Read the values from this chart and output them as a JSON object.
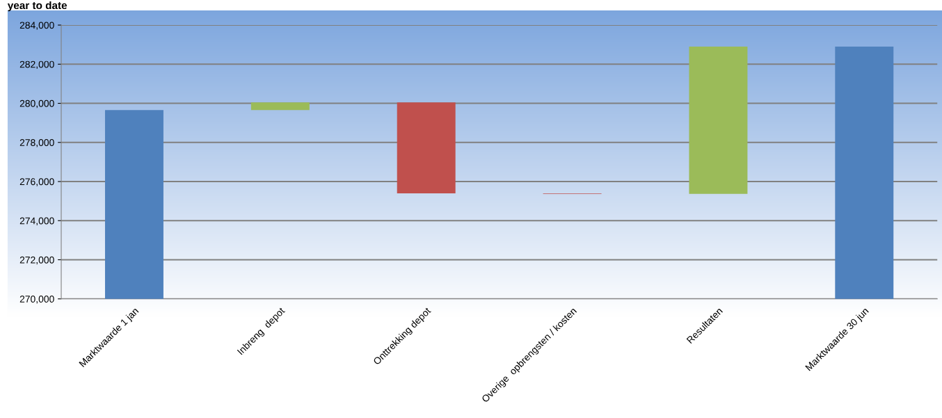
{
  "chart_data": {
    "type": "bar",
    "title": "year to date",
    "categories": [
      "Marktwaarde 1 jan",
      "Inbreng  depot",
      "Onttrekking depot",
      "Overige  opbrengsten / kosten",
      "Resultaten",
      "Marktwaarde 30 jun"
    ],
    "base": [
      0,
      279650,
      280050,
      275400,
      275370,
      0
    ],
    "values": [
      279650,
      400,
      -4650,
      -30,
      7530,
      282900
    ],
    "colors": [
      "#4f81bd",
      "#9bbb59",
      "#c0504d",
      "#c0504d",
      "#9bbb59",
      "#4f81bd"
    ],
    "ylim": [
      270000,
      284000
    ],
    "yticks": [
      {
        "value": 270000,
        "label": "270,000"
      },
      {
        "value": 272000,
        "label": "272,000"
      },
      {
        "value": 274000,
        "label": "274,000"
      },
      {
        "value": 276000,
        "label": "276,000"
      },
      {
        "value": 278000,
        "label": "278,000"
      },
      {
        "value": 280000,
        "label": "280,000"
      },
      {
        "value": 282000,
        "label": "282,000"
      },
      {
        "value": 284000,
        "label": "284,000"
      }
    ],
    "grid": "y",
    "legend": false
  }
}
